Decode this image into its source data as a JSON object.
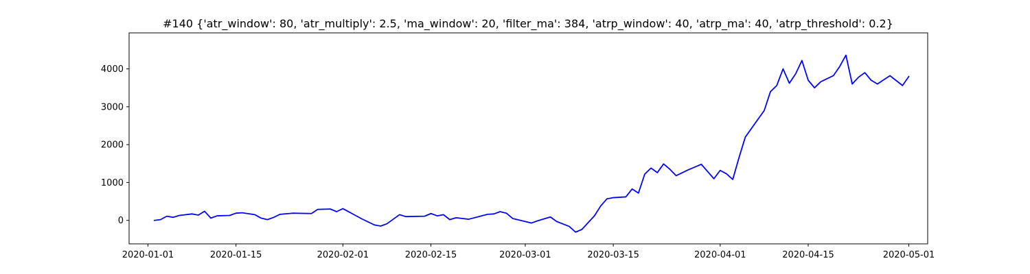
{
  "chart_data": {
    "type": "line",
    "title": "#140 {'atr_window': 80, 'atr_multiply': 2.5, 'ma_window': 20, 'filter_ma': 384, 'atrp_window': 40, 'atrp_ma': 40, 'atrp_threshold': 0.2}",
    "xlabel": "",
    "ylabel": "",
    "x_axis_type": "date",
    "xlim": [
      "2019-12-29",
      "2020-05-04"
    ],
    "ylim": [
      -620,
      4950
    ],
    "grid": false,
    "legend": "none",
    "x_ticks": [
      "2020-01-01",
      "2020-01-15",
      "2020-02-01",
      "2020-02-15",
      "2020-03-01",
      "2020-03-15",
      "2020-04-01",
      "2020-04-15",
      "2020-05-01"
    ],
    "y_ticks": [
      0,
      1000,
      2000,
      3000,
      4000
    ],
    "series": [
      {
        "color": "#0000ff",
        "points": [
          [
            "2020-01-02",
            0
          ],
          [
            "2020-01-03",
            20
          ],
          [
            "2020-01-04",
            110
          ],
          [
            "2020-01-05",
            80
          ],
          [
            "2020-01-06",
            130
          ],
          [
            "2020-01-08",
            170
          ],
          [
            "2020-01-09",
            140
          ],
          [
            "2020-01-10",
            240
          ],
          [
            "2020-01-11",
            60
          ],
          [
            "2020-01-12",
            120
          ],
          [
            "2020-01-14",
            130
          ],
          [
            "2020-01-15",
            190
          ],
          [
            "2020-01-16",
            200
          ],
          [
            "2020-01-18",
            150
          ],
          [
            "2020-01-19",
            60
          ],
          [
            "2020-01-20",
            20
          ],
          [
            "2020-01-21",
            80
          ],
          [
            "2020-01-22",
            160
          ],
          [
            "2020-01-24",
            190
          ],
          [
            "2020-01-27",
            180
          ],
          [
            "2020-01-28",
            290
          ],
          [
            "2020-01-30",
            300
          ],
          [
            "2020-01-31",
            230
          ],
          [
            "2020-02-01",
            310
          ],
          [
            "2020-02-04",
            40
          ],
          [
            "2020-02-06",
            -120
          ],
          [
            "2020-02-07",
            -150
          ],
          [
            "2020-02-08",
            -90
          ],
          [
            "2020-02-10",
            150
          ],
          [
            "2020-02-11",
            100
          ],
          [
            "2020-02-14",
            110
          ],
          [
            "2020-02-15",
            180
          ],
          [
            "2020-02-16",
            120
          ],
          [
            "2020-02-17",
            150
          ],
          [
            "2020-02-18",
            20
          ],
          [
            "2020-02-19",
            70
          ],
          [
            "2020-02-21",
            30
          ],
          [
            "2020-02-24",
            160
          ],
          [
            "2020-02-25",
            170
          ],
          [
            "2020-02-26",
            230
          ],
          [
            "2020-02-27",
            190
          ],
          [
            "2020-02-28",
            50
          ],
          [
            "2020-03-02",
            -70
          ],
          [
            "2020-03-03",
            -10
          ],
          [
            "2020-03-05",
            90
          ],
          [
            "2020-03-06",
            -30
          ],
          [
            "2020-03-08",
            -160
          ],
          [
            "2020-03-09",
            -310
          ],
          [
            "2020-03-10",
            -240
          ],
          [
            "2020-03-11",
            -60
          ],
          [
            "2020-03-12",
            120
          ],
          [
            "2020-03-13",
            380
          ],
          [
            "2020-03-14",
            570
          ],
          [
            "2020-03-15",
            600
          ],
          [
            "2020-03-17",
            620
          ],
          [
            "2020-03-18",
            830
          ],
          [
            "2020-03-19",
            720
          ],
          [
            "2020-03-20",
            1220
          ],
          [
            "2020-03-21",
            1380
          ],
          [
            "2020-03-22",
            1260
          ],
          [
            "2020-03-23",
            1490
          ],
          [
            "2020-03-24",
            1350
          ],
          [
            "2020-03-25",
            1180
          ],
          [
            "2020-03-27",
            1340
          ],
          [
            "2020-03-29",
            1480
          ],
          [
            "2020-03-31",
            1100
          ],
          [
            "2020-04-01",
            1320
          ],
          [
            "2020-04-02",
            1230
          ],
          [
            "2020-04-03",
            1080
          ],
          [
            "2020-04-04",
            1660
          ],
          [
            "2020-04-05",
            2200
          ],
          [
            "2020-04-08",
            2900
          ],
          [
            "2020-04-09",
            3400
          ],
          [
            "2020-04-10",
            3560
          ],
          [
            "2020-04-11",
            4000
          ],
          [
            "2020-04-12",
            3620
          ],
          [
            "2020-04-13",
            3870
          ],
          [
            "2020-04-14",
            4220
          ],
          [
            "2020-04-15",
            3700
          ],
          [
            "2020-04-16",
            3500
          ],
          [
            "2020-04-17",
            3660
          ],
          [
            "2020-04-19",
            3820
          ],
          [
            "2020-04-20",
            4060
          ],
          [
            "2020-04-21",
            4360
          ],
          [
            "2020-04-22",
            3600
          ],
          [
            "2020-04-23",
            3780
          ],
          [
            "2020-04-24",
            3900
          ],
          [
            "2020-04-25",
            3700
          ],
          [
            "2020-04-26",
            3600
          ],
          [
            "2020-04-28",
            3820
          ],
          [
            "2020-04-30",
            3560
          ],
          [
            "2020-05-01",
            3800
          ]
        ]
      }
    ]
  }
}
